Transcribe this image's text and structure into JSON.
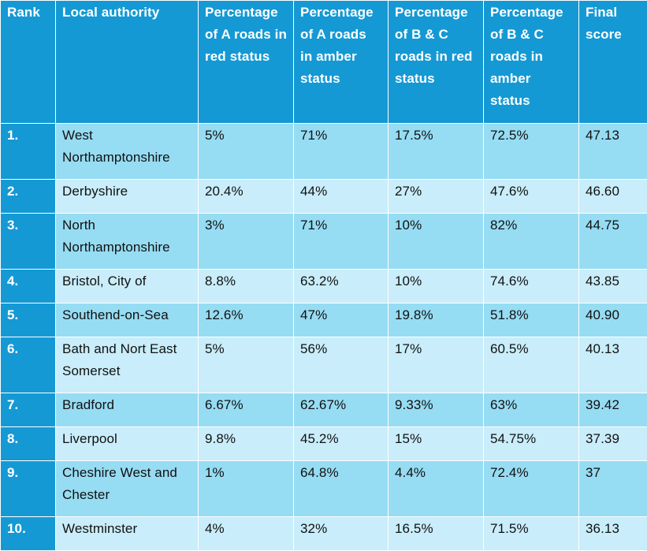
{
  "headers": [
    "Rank",
    "Local authority",
    "Percentage of A roads in red status",
    "Percentage of A roads in amber status",
    "Percentage of B & C roads in red status",
    "Percentage of B & C roads in amber status",
    "Final score"
  ],
  "rows": [
    [
      "1.",
      "West Northamptonshire",
      "5%",
      "71%",
      "17.5%",
      "72.5%",
      "47.13"
    ],
    [
      "2.",
      "Derbyshire",
      "20.4%",
      "44%",
      "27%",
      "47.6%",
      "46.60"
    ],
    [
      "3.",
      "North Northamptonshire",
      "3%",
      "71%",
      "10%",
      "82%",
      "44.75"
    ],
    [
      "4.",
      "Bristol, City of",
      "8.8%",
      "63.2%",
      "10%",
      "74.6%",
      "43.85"
    ],
    [
      "5.",
      "Southend-on-Sea",
      "12.6%",
      "47%",
      "19.8%",
      "51.8%",
      "40.90"
    ],
    [
      "6.",
      "Bath and Nort East Somerset",
      "5%",
      "56%",
      "17%",
      "60.5%",
      "40.13"
    ],
    [
      "7.",
      "Bradford",
      "6.67%",
      "62.67%",
      "9.33%",
      "63%",
      "39.42"
    ],
    [
      "8.",
      "Liverpool",
      "9.8%",
      "45.2%",
      "15%",
      "54.75%",
      "37.39"
    ],
    [
      "9.",
      "Cheshire West and Chester",
      "1%",
      "64.8%",
      "4.4%",
      "72.4%",
      "37"
    ],
    [
      "10.",
      "Westminster",
      "4%",
      "32%",
      "16.5%",
      "71.5%",
      "36.13"
    ]
  ],
  "colors": {
    "header_bg": "#1599d4",
    "row_odd_bg": "#96dcf3",
    "row_even_bg": "#c9edfa",
    "header_text": "#ffffff"
  }
}
